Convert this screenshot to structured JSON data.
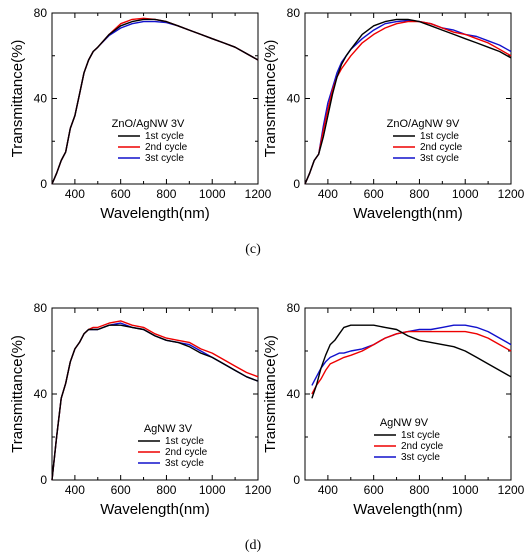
{
  "figure_labels": [
    "(c)",
    "(d)"
  ],
  "colors": {
    "cycle1": "#000000",
    "cycle2": "#ee0000",
    "cycle3": "#1111cc"
  },
  "chart_data": [
    {
      "type": "line",
      "legend_title": "ZnO/AgNW 3V",
      "legend_placement": "lower-center",
      "xlabel": "Wavelength(nm)",
      "ylabel": "Transmittance(%)",
      "xlim": [
        300,
        1200
      ],
      "ylim": [
        0,
        80
      ],
      "xticks": [
        400,
        600,
        800,
        1000,
        1200
      ],
      "yticks": [
        0,
        40,
        80
      ],
      "series": [
        {
          "name": "1st cycle",
          "x": [
            300,
            320,
            340,
            360,
            380,
            400,
            420,
            440,
            460,
            480,
            500,
            550,
            600,
            650,
            700,
            750,
            800,
            850,
            900,
            950,
            1000,
            1050,
            1100,
            1150,
            1200
          ],
          "values": [
            0,
            5,
            11,
            15,
            26,
            32,
            42,
            52,
            58,
            62,
            64,
            70,
            74,
            76,
            77,
            77,
            76,
            74,
            72,
            70,
            68,
            66,
            64,
            61,
            58
          ]
        },
        {
          "name": "2nd cycle",
          "x": [
            300,
            320,
            340,
            360,
            380,
            400,
            420,
            440,
            460,
            480,
            500,
            550,
            600,
            650,
            700,
            750,
            800,
            850,
            900,
            950,
            1000,
            1050,
            1100,
            1150,
            1200
          ],
          "values": [
            0,
            5,
            11,
            15,
            26,
            32,
            42,
            52,
            58,
            62,
            64,
            70,
            75,
            77,
            77.5,
            77,
            76,
            74,
            72,
            70,
            68,
            66,
            64,
            61,
            58
          ]
        },
        {
          "name": "3st cycle",
          "x": [
            300,
            320,
            340,
            360,
            380,
            400,
            420,
            440,
            460,
            480,
            500,
            550,
            600,
            650,
            700,
            750,
            800,
            850,
            900,
            950,
            1000,
            1050,
            1100,
            1150,
            1200
          ],
          "values": [
            0,
            5,
            11,
            15,
            26,
            32,
            42,
            52,
            58,
            62,
            64,
            69.5,
            73,
            75,
            76,
            76,
            75.5,
            74,
            72,
            70,
            68,
            66,
            64,
            61,
            58
          ]
        }
      ]
    },
    {
      "type": "line",
      "legend_title": "ZnO/AgNW 9V",
      "legend_placement": "lower-right",
      "xlabel": "Wavelength(nm)",
      "ylabel": "Transmittance(%)",
      "xlim": [
        300,
        1200
      ],
      "ylim": [
        0,
        80
      ],
      "xticks": [
        400,
        600,
        800,
        1000,
        1200
      ],
      "yticks": [
        0,
        40,
        80
      ],
      "series": [
        {
          "name": "1st cycle",
          "x": [
            300,
            320,
            340,
            360,
            380,
            400,
            420,
            440,
            460,
            480,
            500,
            550,
            600,
            650,
            700,
            750,
            800,
            850,
            900,
            950,
            1000,
            1050,
            1100,
            1150,
            1200
          ],
          "values": [
            0,
            5,
            11,
            14,
            22,
            32,
            42,
            50,
            56,
            60,
            63,
            70,
            74,
            76,
            77,
            77,
            76,
            74,
            72,
            70,
            68,
            66,
            64,
            62,
            59
          ]
        },
        {
          "name": "2nd cycle",
          "x": [
            300,
            320,
            340,
            360,
            380,
            400,
            420,
            440,
            460,
            480,
            500,
            550,
            600,
            650,
            700,
            750,
            800,
            850,
            900,
            950,
            1000,
            1050,
            1100,
            1150,
            1200
          ],
          "values": [
            0,
            5,
            11,
            14,
            25,
            35,
            44,
            50,
            54,
            57,
            60,
            66,
            70,
            73,
            75,
            76,
            76,
            75,
            73,
            71,
            70,
            68,
            66,
            63,
            60
          ]
        },
        {
          "name": "3st cycle",
          "x": [
            300,
            320,
            340,
            360,
            380,
            400,
            420,
            440,
            460,
            480,
            500,
            550,
            600,
            650,
            700,
            750,
            800,
            850,
            900,
            950,
            1000,
            1050,
            1100,
            1150,
            1200
          ],
          "values": [
            0,
            5,
            11,
            14,
            27,
            38,
            45,
            52,
            57,
            60,
            63,
            68,
            72,
            75,
            76,
            76.5,
            76,
            75,
            73,
            72,
            70,
            69,
            67,
            65,
            62
          ]
        }
      ]
    },
    {
      "type": "line",
      "legend_title": "AgNW 3V",
      "legend_placement": "lower-center",
      "xlabel": "Wavelength(nm)",
      "ylabel": "Transmittance(%)",
      "xlim": [
        300,
        1200
      ],
      "ylim": [
        0,
        80
      ],
      "xticks": [
        400,
        600,
        800,
        1000,
        1200
      ],
      "yticks": [
        0,
        40,
        80
      ],
      "series": [
        {
          "name": "1st cycle",
          "x": [
            300,
            320,
            340,
            360,
            380,
            400,
            420,
            440,
            460,
            480,
            500,
            550,
            600,
            650,
            700,
            750,
            800,
            850,
            900,
            950,
            1000,
            1050,
            1100,
            1150,
            1200
          ],
          "values": [
            0,
            20,
            38,
            45,
            55,
            61,
            64,
            68,
            70,
            70,
            70,
            72,
            72,
            71,
            70,
            67,
            65,
            64,
            62,
            59,
            57,
            54,
            51,
            48,
            46
          ]
        },
        {
          "name": "2nd cycle",
          "x": [
            300,
            320,
            340,
            360,
            380,
            400,
            420,
            440,
            460,
            480,
            500,
            550,
            600,
            650,
            700,
            750,
            800,
            850,
            900,
            950,
            1000,
            1050,
            1100,
            1150,
            1200
          ],
          "values": [
            0,
            20,
            38,
            45,
            55,
            61,
            64,
            68,
            70,
            71,
            71,
            73,
            74,
            72,
            71,
            68,
            66,
            65,
            64,
            61,
            59,
            56,
            53,
            50,
            48
          ]
        },
        {
          "name": "3st cycle",
          "x": [
            300,
            320,
            340,
            360,
            380,
            400,
            420,
            440,
            460,
            480,
            500,
            550,
            600,
            650,
            700,
            750,
            800,
            850,
            900,
            950,
            1000,
            1050,
            1100,
            1150,
            1200
          ],
          "values": [
            0,
            20,
            38,
            45,
            55,
            61,
            64,
            68,
            70,
            70,
            70,
            72,
            73,
            71,
            70,
            67,
            65,
            64,
            63,
            60,
            57,
            54,
            51,
            48,
            46
          ]
        }
      ]
    },
    {
      "type": "line",
      "legend_title": "AgNW 9V",
      "legend_placement": "lower-center",
      "xlabel": "Wavelength(nm)",
      "ylabel": "Transmittance(%)",
      "xlim": [
        300,
        1200
      ],
      "ylim": [
        0,
        80
      ],
      "xticks": [
        400,
        600,
        800,
        1000,
        1200
      ],
      "yticks": [
        0,
        40,
        80
      ],
      "series": [
        {
          "name": "1st cycle",
          "x": [
            330,
            350,
            370,
            390,
            410,
            430,
            450,
            470,
            500,
            550,
            600,
            650,
            700,
            750,
            800,
            850,
            900,
            950,
            1000,
            1050,
            1100,
            1150,
            1200
          ],
          "values": [
            38,
            44,
            52,
            58,
            63,
            65,
            68,
            71,
            72,
            72,
            72,
            71,
            70,
            67,
            65,
            64,
            63,
            62,
            60,
            57,
            54,
            51,
            48
          ]
        },
        {
          "name": "2nd cycle",
          "x": [
            330,
            350,
            370,
            390,
            410,
            430,
            450,
            470,
            500,
            550,
            600,
            650,
            700,
            750,
            800,
            850,
            900,
            950,
            1000,
            1050,
            1100,
            1150,
            1200
          ],
          "values": [
            40,
            44,
            47,
            51,
            54,
            55,
            56,
            57,
            58,
            60,
            63,
            66,
            68,
            69,
            69,
            69,
            69,
            69,
            69,
            68,
            66,
            63,
            60
          ]
        },
        {
          "name": "3st cycle",
          "x": [
            330,
            350,
            370,
            390,
            410,
            430,
            450,
            470,
            500,
            550,
            600,
            650,
            700,
            750,
            800,
            850,
            900,
            950,
            1000,
            1050,
            1100,
            1150,
            1200
          ],
          "values": [
            44,
            48,
            52,
            55,
            57,
            58,
            59,
            59,
            60,
            61,
            63,
            66,
            68,
            69,
            70,
            70,
            71,
            72,
            72,
            71,
            69,
            66,
            63
          ]
        }
      ]
    }
  ]
}
